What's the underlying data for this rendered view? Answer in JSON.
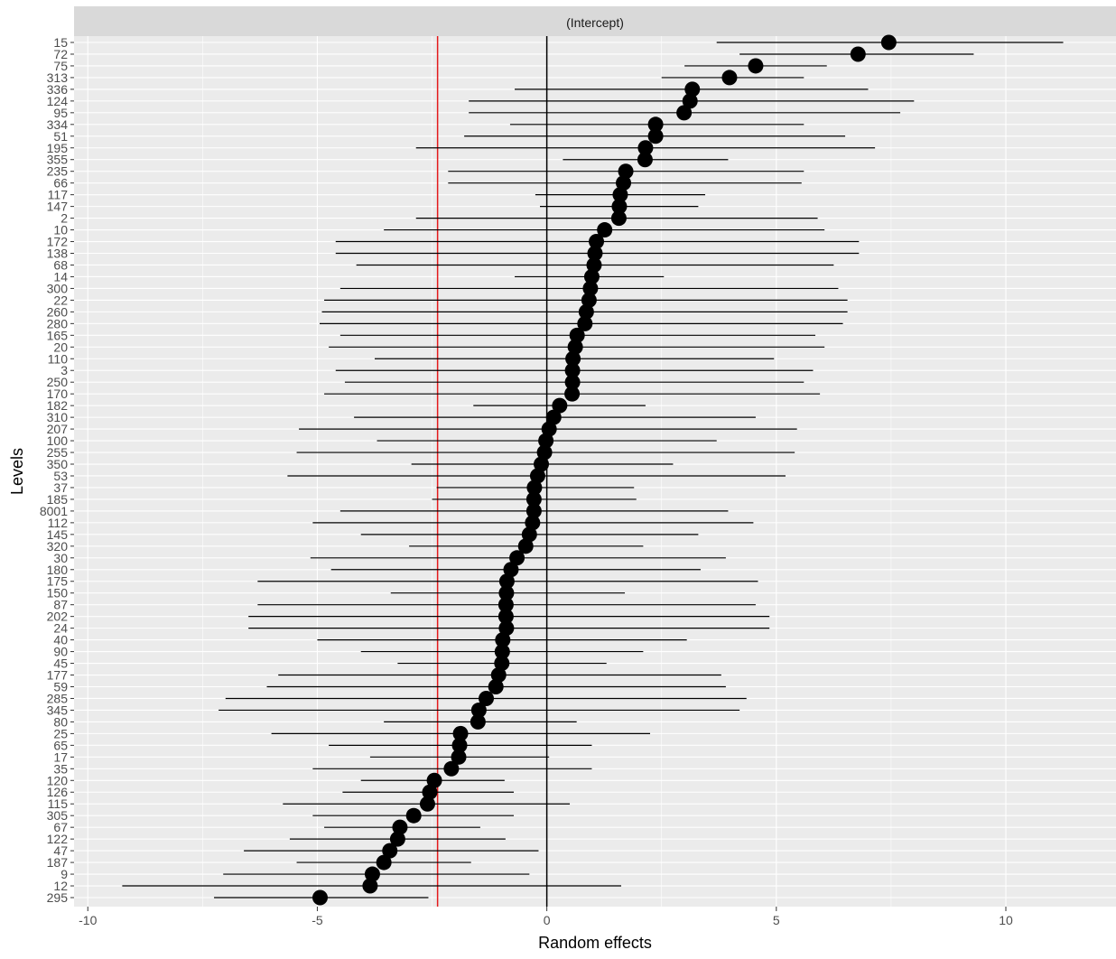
{
  "chart_data": {
    "type": "scatter",
    "strip_label": "(Intercept)",
    "xlabel": "Random effects",
    "ylabel": "Levels",
    "xlim": [
      -10.3,
      12.4
    ],
    "x_ticks": [
      -10,
      -5,
      0,
      5,
      10
    ],
    "x_tick_labels": [
      "-10",
      "-5",
      "0",
      "5",
      "10"
    ],
    "reference_lines": [
      {
        "x": 0,
        "color": "#000000"
      },
      {
        "x": -2.38,
        "color": "#e41a1c"
      }
    ],
    "levels": [
      "15",
      "72",
      "75",
      "313",
      "336",
      "124",
      "95",
      "334",
      "51",
      "195",
      "355",
      "235",
      "66",
      "117",
      "147",
      "2",
      "10",
      "172",
      "138",
      "68",
      "14",
      "300",
      "22",
      "260",
      "280",
      "165",
      "20",
      "110",
      "3",
      "250",
      "170",
      "182",
      "310",
      "207",
      "100",
      "255",
      "350",
      "53",
      "37",
      "185",
      "8001",
      "112",
      "145",
      "320",
      "30",
      "180",
      "175",
      "150",
      "87",
      "202",
      "24",
      "40",
      "90",
      "45",
      "177",
      "59",
      "285",
      "345",
      "80",
      "25",
      "65",
      "17",
      "35",
      "120",
      "126",
      "115",
      "305",
      "67",
      "122",
      "47",
      "187",
      "9",
      "12",
      "295"
    ],
    "estimates": [
      7.45,
      6.78,
      4.55,
      3.98,
      3.17,
      3.12,
      2.99,
      2.37,
      2.37,
      2.15,
      2.14,
      1.72,
      1.67,
      1.6,
      1.58,
      1.57,
      1.26,
      1.08,
      1.05,
      1.03,
      0.98,
      0.95,
      0.92,
      0.86,
      0.83,
      0.66,
      0.62,
      0.57,
      0.56,
      0.56,
      0.55,
      0.28,
      0.15,
      0.05,
      -0.02,
      -0.05,
      -0.12,
      -0.2,
      -0.27,
      -0.28,
      -0.28,
      -0.31,
      -0.38,
      -0.46,
      -0.65,
      -0.78,
      -0.87,
      -0.88,
      -0.89,
      -0.89,
      -0.88,
      -0.96,
      -0.97,
      -0.98,
      -1.05,
      -1.11,
      -1.32,
      -1.48,
      -1.5,
      -1.88,
      -1.9,
      -1.92,
      -2.08,
      -2.45,
      -2.55,
      -2.6,
      -2.9,
      -3.2,
      -3.25,
      -3.42,
      -3.55,
      -3.8,
      -3.85,
      -4.94
    ],
    "lower": [
      3.7,
      4.2,
      3.0,
      2.5,
      -0.7,
      -1.7,
      -1.7,
      -0.8,
      -1.8,
      -2.85,
      0.35,
      -2.15,
      -2.15,
      -0.25,
      -0.15,
      -2.85,
      -3.55,
      -4.6,
      -4.6,
      -4.15,
      -0.7,
      -4.5,
      -4.85,
      -4.9,
      -4.95,
      -4.5,
      -4.75,
      -3.75,
      -4.6,
      -4.4,
      -4.85,
      -1.6,
      -4.2,
      -5.4,
      -3.7,
      -5.45,
      -2.95,
      -5.65,
      -2.4,
      -2.5,
      -4.5,
      -5.1,
      -4.05,
      -3.0,
      -5.15,
      -4.7,
      -6.3,
      -3.4,
      -6.3,
      -6.5,
      -6.5,
      -5.0,
      -4.05,
      -3.25,
      -5.85,
      -6.1,
      -7.0,
      -7.15,
      -3.55,
      -6.0,
      -4.75,
      -3.85,
      -5.1,
      -4.05,
      -4.45,
      -5.75,
      -5.1,
      -4.85,
      -5.6,
      -6.6,
      -5.45,
      -7.05,
      -9.25,
      -7.25
    ],
    "upper": [
      11.25,
      9.3,
      6.1,
      5.6,
      7.0,
      8.0,
      7.7,
      5.6,
      6.5,
      7.15,
      3.95,
      5.6,
      5.55,
      3.45,
      3.3,
      5.9,
      6.05,
      6.8,
      6.8,
      6.25,
      2.55,
      6.35,
      6.55,
      6.55,
      6.45,
      5.85,
      6.05,
      4.95,
      5.8,
      5.6,
      5.95,
      2.15,
      4.55,
      5.45,
      3.7,
      5.4,
      2.75,
      5.2,
      1.9,
      1.95,
      3.95,
      4.5,
      3.3,
      2.1,
      3.9,
      3.35,
      4.6,
      1.7,
      4.55,
      4.85,
      4.85,
      3.05,
      2.1,
      1.3,
      3.8,
      3.9,
      4.35,
      4.2,
      0.65,
      2.25,
      0.98,
      0.05,
      0.98,
      -0.92,
      -0.72,
      0.5,
      -0.72,
      -1.45,
      -0.9,
      -0.18,
      -1.65,
      -0.38,
      1.62,
      -2.58
    ],
    "point_color": "#000000",
    "line_color": "#000000",
    "panel_background": "#ebebeb",
    "strip_background": "#d9d9d9",
    "grid": true,
    "grid_color": "#ffffff"
  }
}
